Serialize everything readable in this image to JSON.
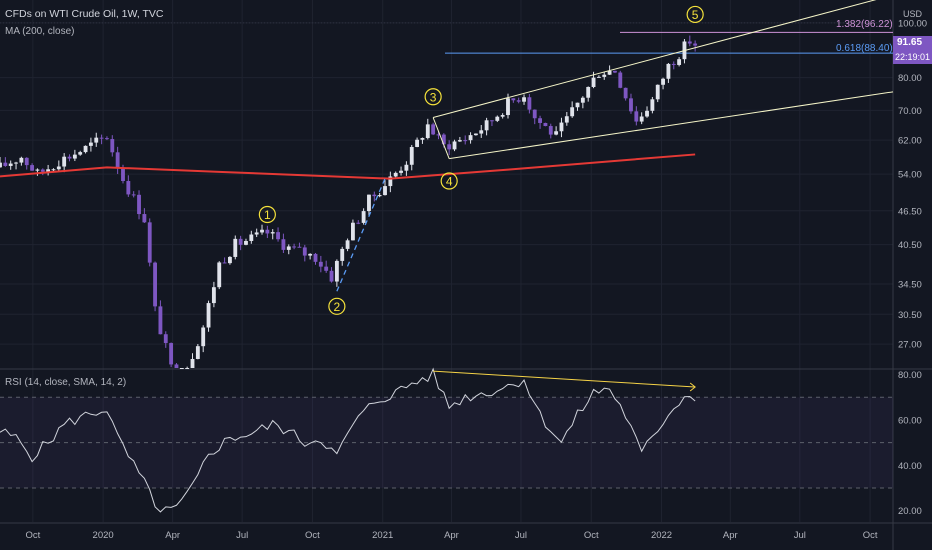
{
  "header": {
    "title": "CFDs on WTI Crude Oil, 1W, TVC",
    "ma_label": "MA (200, close)",
    "currency": "USD",
    "rsi_label": "RSI (14, close, SMA, 14, 2)"
  },
  "price_badge": {
    "value": "91.65",
    "countdown": "22:19:01",
    "color": "#7e57c2"
  },
  "levels": [
    {
      "label": "1.382(96.22)",
      "value": 96.22,
      "color": "#ce93d8"
    },
    {
      "label": "0.618(88.40)",
      "value": 88.4,
      "color": "#5b9cf6"
    }
  ],
  "waves": [
    {
      "label": "1",
      "date": "2020-08-03",
      "price": 45.8
    },
    {
      "label": "2",
      "date": "2020-11-02",
      "price": 31.5
    },
    {
      "label": "3",
      "date": "2021-03-08",
      "price": 74.0
    },
    {
      "label": "4",
      "date": "2021-03-29",
      "price": 52.5
    },
    {
      "label": "5",
      "date": "2022-02-14",
      "price": 103.5
    }
  ],
  "colors": {
    "background": "#131722",
    "up_candle": "#e0e3eb",
    "down_candle": "#7e57c2",
    "ma_line": "#e53935",
    "rsi_line": "#d1d4dc",
    "channel": "#f5f5c8",
    "wave_label": "#f5e23b",
    "divergence": "#f5d347",
    "dashed_wave": "#5b9cf6",
    "grid": "#1f2330"
  },
  "chart_data": [
    {
      "type": "candlestick",
      "title": "CFDs on WTI Crude Oil, 1W, TVC",
      "x_type": "date",
      "xlim": [
        "2019-08-19",
        "2022-10-31"
      ],
      "y_scale": "log",
      "ylim": [
        24.5,
        108
      ],
      "y_ticks": [
        27.0,
        30.5,
        34.5,
        40.5,
        46.5,
        54.0,
        62.0,
        70.0,
        80.0,
        100.0
      ],
      "x_ticks": [
        {
          "label": "Oct",
          "date": "2019-10-01"
        },
        {
          "label": "2020",
          "date": "2020-01-01"
        },
        {
          "label": "Apr",
          "date": "2020-04-01"
        },
        {
          "label": "Jul",
          "date": "2020-07-01"
        },
        {
          "label": "Oct",
          "date": "2020-10-01"
        },
        {
          "label": "2021",
          "date": "2021-01-01"
        },
        {
          "label": "Apr",
          "date": "2021-04-01"
        },
        {
          "label": "Jul",
          "date": "2021-07-01"
        },
        {
          "label": "Oct",
          "date": "2021-10-01"
        },
        {
          "label": "2022",
          "date": "2022-01-01"
        },
        {
          "label": "Apr",
          "date": "2022-04-01"
        },
        {
          "label": "Jul",
          "date": "2022-07-01"
        },
        {
          "label": "Oct",
          "date": "2022-10-01"
        }
      ],
      "close_path": [
        [
          "2019-08-19",
          55.5
        ],
        [
          "2019-09-16",
          58.0
        ],
        [
          "2019-10-07",
          54.0
        ],
        [
          "2019-11-04",
          57.0
        ],
        [
          "2019-12-09",
          60.0
        ],
        [
          "2020-01-06",
          63.0
        ],
        [
          "2020-01-27",
          53.0
        ],
        [
          "2020-02-24",
          45.0
        ],
        [
          "2020-03-09",
          31.0
        ],
        [
          "2020-03-30",
          24.5
        ],
        [
          "2020-04-20",
          24.5
        ],
        [
          "2020-05-11",
          29.0
        ],
        [
          "2020-06-01",
          37.5
        ],
        [
          "2020-06-22",
          40.5
        ],
        [
          "2020-08-03",
          42.5
        ],
        [
          "2020-08-31",
          40.0
        ],
        [
          "2020-10-05",
          38.5
        ],
        [
          "2020-10-26",
          35.5
        ],
        [
          "2020-11-16",
          42.0
        ],
        [
          "2020-12-14",
          48.5
        ],
        [
          "2021-01-11",
          53.0
        ],
        [
          "2021-02-01",
          57.0
        ],
        [
          "2021-03-01",
          66.0
        ],
        [
          "2021-03-22",
          60.5
        ],
        [
          "2021-04-19",
          62.5
        ],
        [
          "2021-05-17",
          66.0
        ],
        [
          "2021-06-14",
          72.0
        ],
        [
          "2021-07-05",
          75.0
        ],
        [
          "2021-07-19",
          68.0
        ],
        [
          "2021-08-16",
          63.0
        ],
        [
          "2021-09-13",
          72.0
        ],
        [
          "2021-10-11",
          82.0
        ],
        [
          "2021-11-01",
          82.5
        ],
        [
          "2021-11-29",
          67.0
        ],
        [
          "2021-12-20",
          73.0
        ],
        [
          "2022-01-10",
          84.0
        ],
        [
          "2022-02-07",
          93.0
        ],
        [
          "2022-02-14",
          91.65
        ]
      ],
      "ma200_path": [
        [
          "2019-08-19",
          53.5
        ],
        [
          "2020-01-06",
          55.5
        ],
        [
          "2020-06-01",
          54.5
        ],
        [
          "2021-01-11",
          53.0
        ],
        [
          "2021-06-14",
          55.0
        ],
        [
          "2022-02-14",
          58.5
        ]
      ],
      "channel_upper": [
        [
          "2021-03-08",
          68.0
        ],
        [
          "2022-10-31",
          112.0
        ]
      ],
      "channel_lower": [
        [
          "2021-03-29",
          57.5
        ],
        [
          "2022-10-31",
          75.5
        ]
      ],
      "wave_dashed": [
        [
          "2020-11-02",
          33.5
        ],
        [
          "2021-01-04",
          53.0
        ]
      ]
    },
    {
      "type": "line",
      "title": "RSI (14, close, SMA, 14, 2)",
      "x_type": "date",
      "ylim": [
        15,
        82
      ],
      "y_ticks": [
        20.0,
        40.0,
        60.0,
        80.0
      ],
      "bands": [
        30,
        50,
        70
      ],
      "values": [
        [
          "2019-08-19",
          55
        ],
        [
          "2019-09-09",
          52
        ],
        [
          "2019-09-30",
          44
        ],
        [
          "2019-10-21",
          50
        ],
        [
          "2019-11-11",
          58
        ],
        [
          "2019-12-09",
          62
        ],
        [
          "2020-01-06",
          65
        ],
        [
          "2020-01-20",
          52
        ],
        [
          "2020-02-10",
          40
        ],
        [
          "2020-03-02",
          28
        ],
        [
          "2020-03-16",
          19
        ],
        [
          "2020-04-06",
          21
        ],
        [
          "2020-04-27",
          30
        ],
        [
          "2020-05-18",
          45
        ],
        [
          "2020-06-15",
          52
        ],
        [
          "2020-07-13",
          54
        ],
        [
          "2020-08-10",
          58
        ],
        [
          "2020-08-31",
          55
        ],
        [
          "2020-09-21",
          50
        ],
        [
          "2020-10-12",
          52
        ],
        [
          "2020-11-02",
          44
        ],
        [
          "2020-11-23",
          58
        ],
        [
          "2020-12-21",
          68
        ],
        [
          "2021-01-18",
          72
        ],
        [
          "2021-02-08",
          76
        ],
        [
          "2021-03-08",
          80
        ],
        [
          "2021-03-29",
          66
        ],
        [
          "2021-04-19",
          70
        ],
        [
          "2021-05-17",
          72
        ],
        [
          "2021-06-14",
          75
        ],
        [
          "2021-07-05",
          78
        ],
        [
          "2021-07-26",
          62
        ],
        [
          "2021-08-23",
          50
        ],
        [
          "2021-09-13",
          62
        ],
        [
          "2021-10-04",
          72
        ],
        [
          "2021-10-25",
          74
        ],
        [
          "2021-11-15",
          62
        ],
        [
          "2021-12-06",
          45
        ],
        [
          "2021-12-27",
          56
        ],
        [
          "2022-01-17",
          66
        ],
        [
          "2022-02-07",
          72
        ],
        [
          "2022-02-14",
          70
        ]
      ],
      "divergence_line": [
        [
          "2021-03-08",
          81.5
        ],
        [
          "2022-02-14",
          74.5
        ]
      ]
    }
  ]
}
